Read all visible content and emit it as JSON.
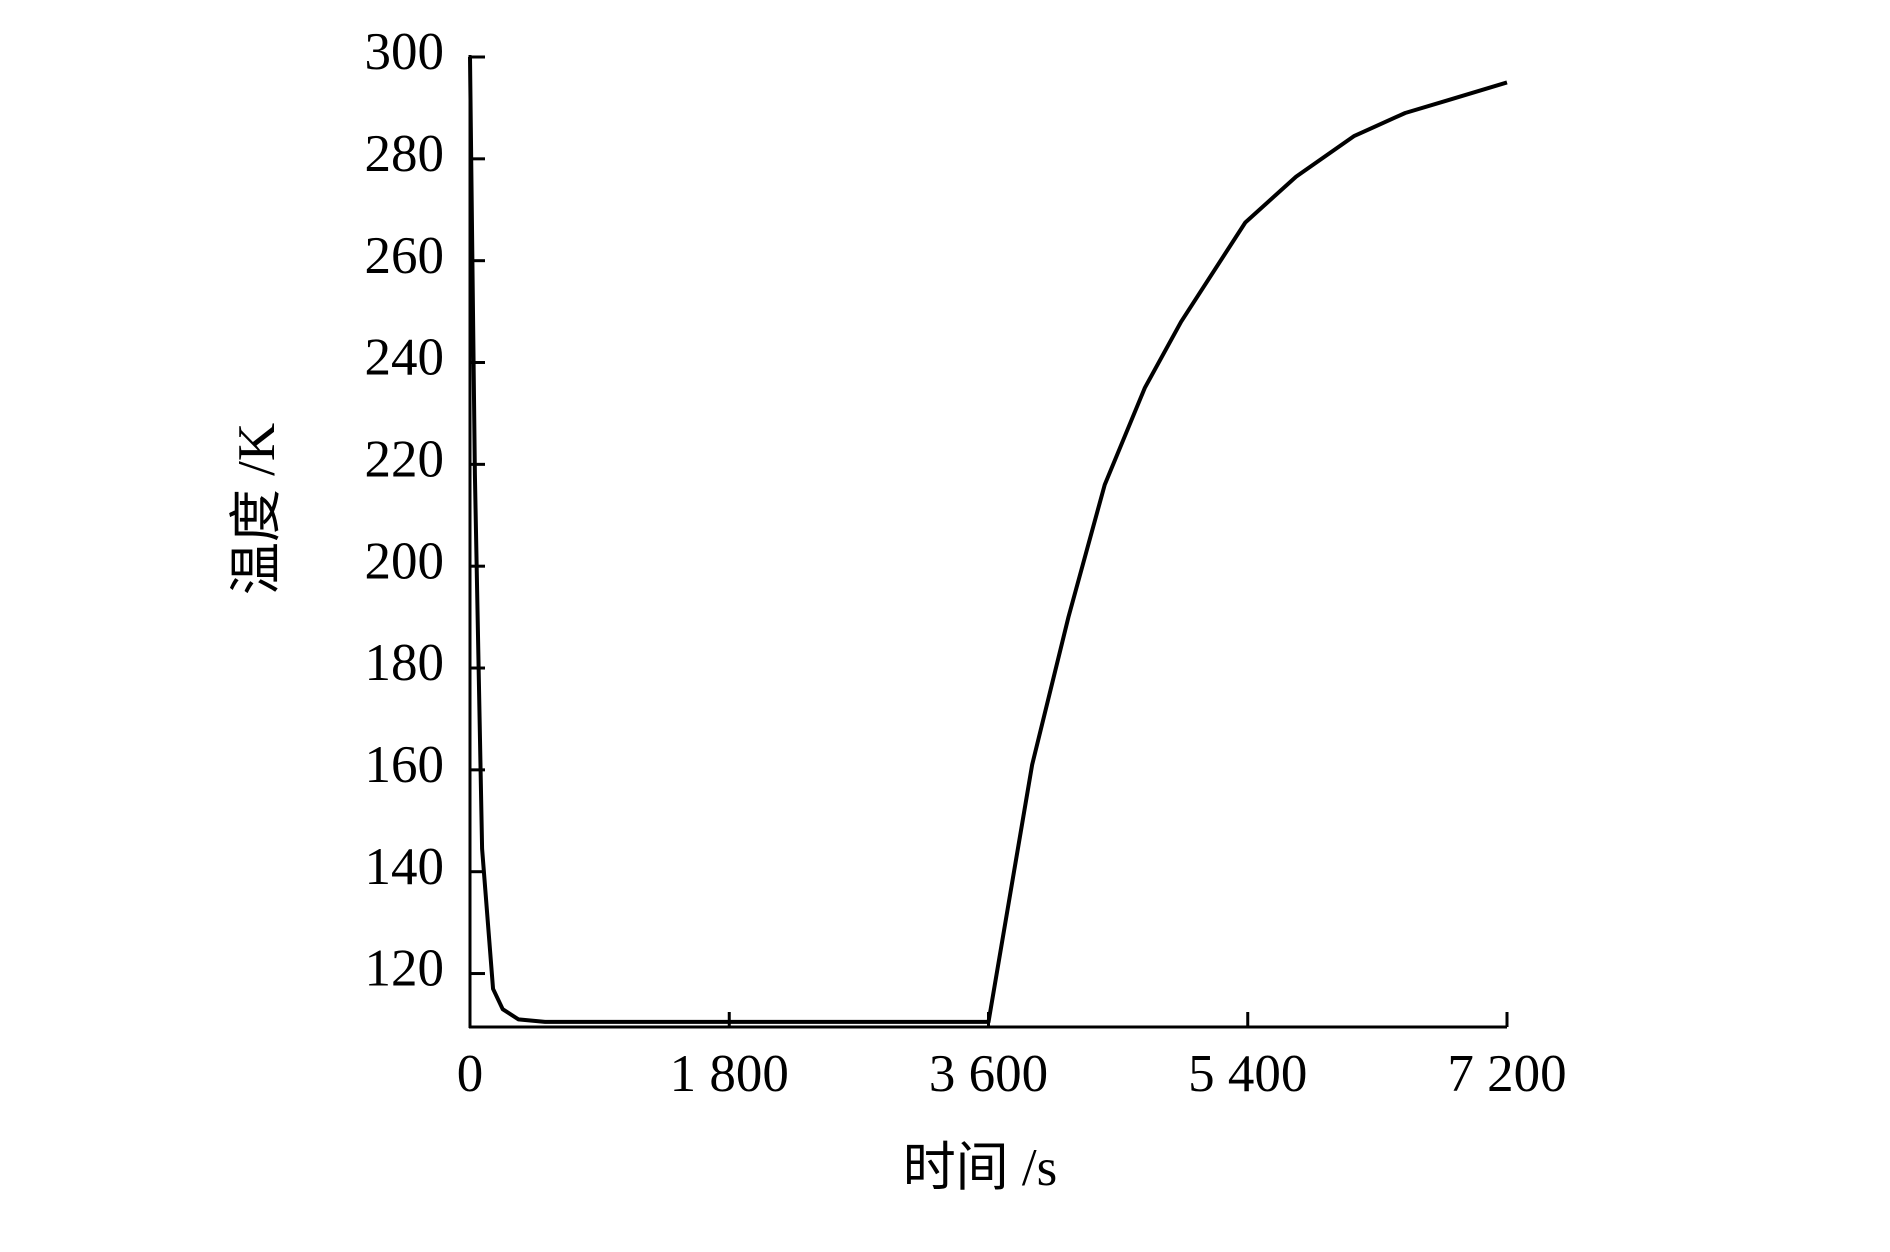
{
  "chart_data": {
    "type": "line",
    "x_label": "时间 /s",
    "y_label": "温度 /K",
    "x": [
      0,
      34,
      84,
      160,
      227,
      336,
      521,
      3600,
      3903,
      4155,
      4407,
      4685,
      4937,
      5383,
      5736,
      6140,
      6493,
      6788,
      7200
    ],
    "series": [
      {
        "color": "#000000",
        "values": [
          300,
          218,
          144.5,
          117,
          113,
          111,
          110.5,
          110.5,
          161,
          190,
          216,
          235,
          248,
          267.5,
          276.5,
          284.5,
          289,
          291.5,
          295
        ]
      }
    ],
    "xlim": [
      0,
      7200
    ],
    "xticks": [
      0,
      {
        "value": 1800,
        "label": "1 800"
      },
      {
        "value": 3600,
        "label": "3 600"
      },
      {
        "value": 5400,
        "label": "5 400"
      },
      {
        "value": 7200,
        "label": "7 200"
      }
    ],
    "ylim": [
      109.5,
      300
    ],
    "yticks": [
      120,
      140,
      160,
      180,
      200,
      220,
      240,
      260,
      280,
      300
    ]
  }
}
